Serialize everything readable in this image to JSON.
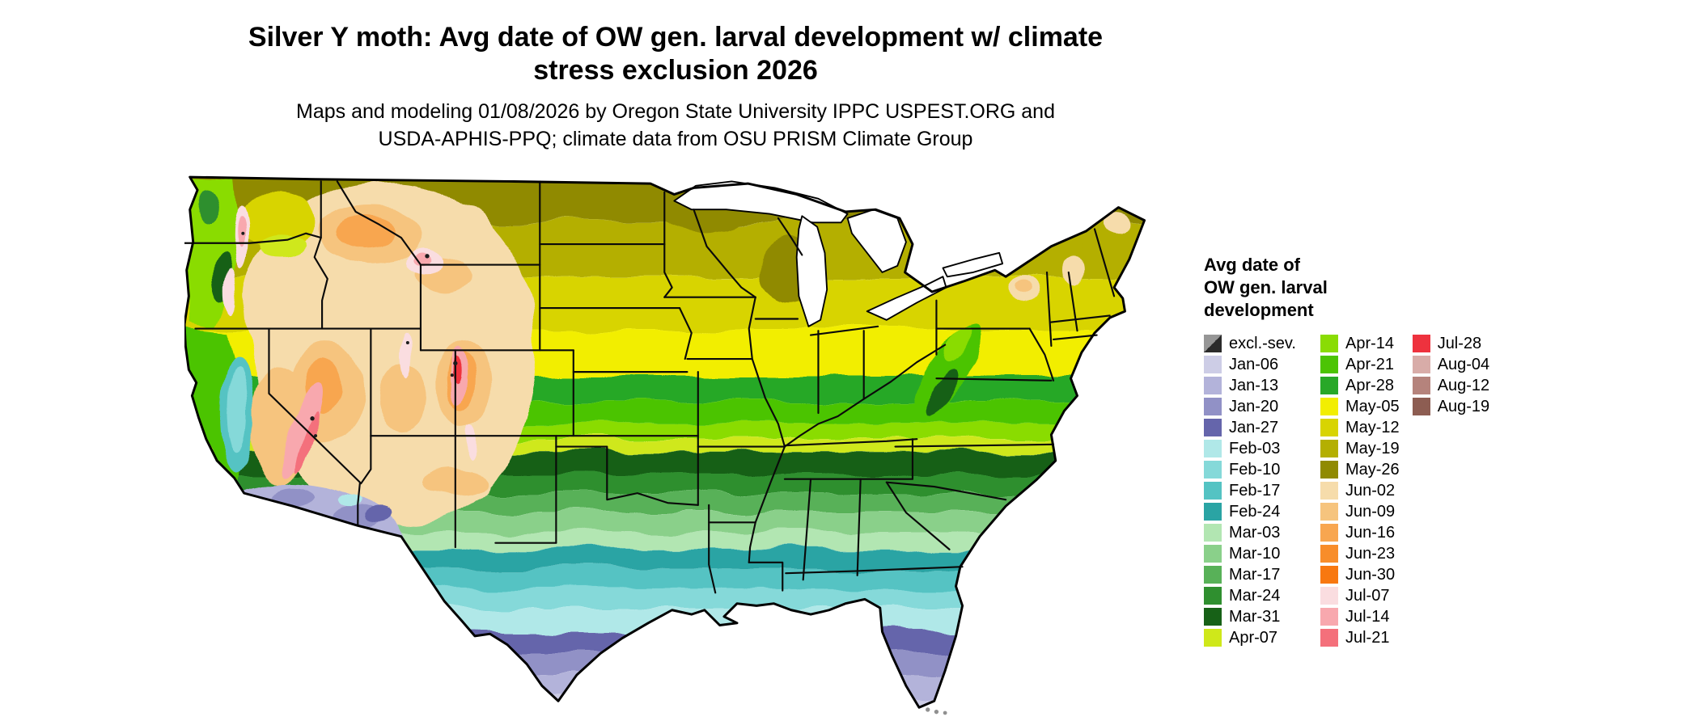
{
  "title": {
    "line1": "Silver Y moth: Avg date of OW gen. larval development w/ climate",
    "line2": "stress exclusion 2026"
  },
  "subtitle": {
    "line1": "Maps and modeling 01/08/2026 by Oregon State University IPPC USPEST.ORG and",
    "line2": "USDA-APHIS-PPQ; climate data from OSU PRISM Climate Group"
  },
  "legend": {
    "title_lines": [
      "Avg date of",
      "OW gen. larval",
      "development"
    ],
    "columns": [
      [
        {
          "label": "excl.-sev.",
          "color": "#969696",
          "color2": "#2b2b2b"
        },
        {
          "label": "Jan-06",
          "color": "#cdcde6"
        },
        {
          "label": "Jan-13",
          "color": "#b3b3da"
        },
        {
          "label": "Jan-20",
          "color": "#9191c6"
        },
        {
          "label": "Jan-27",
          "color": "#6565ab"
        },
        {
          "label": "Feb-03",
          "color": "#b0e8e8"
        },
        {
          "label": "Feb-10",
          "color": "#85d9d9"
        },
        {
          "label": "Feb-17",
          "color": "#54c3c3"
        },
        {
          "label": "Feb-24",
          "color": "#2aa4a4"
        },
        {
          "label": "Mar-03",
          "color": "#b2e6b2"
        },
        {
          "label": "Mar-10",
          "color": "#8ad08a"
        },
        {
          "label": "Mar-17",
          "color": "#58b158"
        },
        {
          "label": "Mar-24",
          "color": "#2f8f2f"
        },
        {
          "label": "Mar-31",
          "color": "#176117"
        },
        {
          "label": "Apr-07",
          "color": "#cfe81a"
        }
      ],
      [
        {
          "label": "Apr-14",
          "color": "#8adc04"
        },
        {
          "label": "Apr-21",
          "color": "#4cc404"
        },
        {
          "label": "Apr-28",
          "color": "#28a828"
        },
        {
          "label": "May-05",
          "color": "#f2ee02"
        },
        {
          "label": "May-12",
          "color": "#d8d402"
        },
        {
          "label": "May-19",
          "color": "#b4af02"
        },
        {
          "label": "May-26",
          "color": "#908a02"
        },
        {
          "label": "Jun-02",
          "color": "#f6dcab"
        },
        {
          "label": "Jun-09",
          "color": "#f6c47e"
        },
        {
          "label": "Jun-16",
          "color": "#f8a650"
        },
        {
          "label": "Jun-23",
          "color": "#f88d2a"
        },
        {
          "label": "Jun-30",
          "color": "#f87810"
        },
        {
          "label": "Jul-07",
          "color": "#fadde0"
        },
        {
          "label": "Jul-14",
          "color": "#f8a8ae"
        },
        {
          "label": "Jul-21",
          "color": "#f4707b"
        }
      ],
      [
        {
          "label": "Jul-28",
          "color": "#ee323e"
        },
        {
          "label": "Aug-04",
          "color": "#d8aca8"
        },
        {
          "label": "Aug-12",
          "color": "#b5837c"
        },
        {
          "label": "Aug-19",
          "color": "#8d5d52"
        }
      ]
    ]
  },
  "chart_data": {
    "type": "heatmap",
    "title": "Silver Y moth: Avg date of OW gen. larval development w/ climate stress exclusion 2026",
    "credit": "Maps and modeling 01/08/2026 by Oregon State University IPPC USPEST.ORG and USDA-APHIS-PPQ; climate data from OSU PRISM Climate Group",
    "geography": "Contiguous United States with state boundaries",
    "legend_title": "Avg date of OW gen. larval development",
    "categories": [
      "excl.-sev.",
      "Jan-06",
      "Jan-13",
      "Jan-20",
      "Jan-27",
      "Feb-03",
      "Feb-10",
      "Feb-17",
      "Feb-24",
      "Mar-03",
      "Mar-10",
      "Mar-17",
      "Mar-24",
      "Mar-31",
      "Apr-07",
      "Apr-14",
      "Apr-21",
      "Apr-28",
      "May-05",
      "May-12",
      "May-19",
      "May-26",
      "Jun-02",
      "Jun-09",
      "Jun-16",
      "Jun-23",
      "Jun-30",
      "Jul-07",
      "Jul-14",
      "Jul-21",
      "Jul-28",
      "Aug-04",
      "Aug-12",
      "Aug-19"
    ],
    "colors": [
      "#969696 / #2b2b2b",
      "#cdcde6",
      "#b3b3da",
      "#9191c6",
      "#6565ab",
      "#b0e8e8",
      "#85d9d9",
      "#54c3c3",
      "#2aa4a4",
      "#b2e6b2",
      "#8ad08a",
      "#58b158",
      "#2f8f2f",
      "#176117",
      "#cfe81a",
      "#8adc04",
      "#4cc404",
      "#28a828",
      "#f2ee02",
      "#d8d402",
      "#b4af02",
      "#908a02",
      "#f6dcab",
      "#f6c47e",
      "#f8a650",
      "#f88d2a",
      "#f87810",
      "#fadde0",
      "#f8a8ae",
      "#f4707b",
      "#ee323e",
      "#d8aca8",
      "#b5837c",
      "#8d5d52"
    ],
    "regions_reading": [
      {
        "region": "South Florida and far south Texas tip",
        "value": "Jan-06 to Jan-20 (pale lavender)"
      },
      {
        "region": "Gulf Coast, central Florida, low deserts of S. California / S. Arizona",
        "value": "Jan-20 to Feb-10 (purple to cyan)"
      },
      {
        "region": "Deep South coastal plain",
        "value": "Feb-10 to Mar-10 (cyan to light green)"
      },
      {
        "region": "Mid-South band (TN, AR, northern MS/AL/GA)",
        "value": "Mar-17 to Mar-31 (dark green)"
      },
      {
        "region": "Lower Midwest, Ozarks, mid-Atlantic, Appalachians",
        "value": "Apr-07 to Apr-28 (green)"
      },
      {
        "region": "Central Plains, Corn Belt, Northeast corridor",
        "value": "May-05 to May-12 (yellow)"
      },
      {
        "region": "Northern Plains, Upper Midwest, northern New England",
        "value": "May-19 to May-26 (olive)"
      },
      {
        "region": "Intermountain West, Great Basin, Rockies plateaus",
        "value": "Jun-02 to Jun-30 (tan to orange)"
      },
      {
        "region": "High mountains (Cascades, Sierra Nevada, Rockies crest)",
        "value": "Jul-07 to Jul-28 (pink to red), small excluded-severe specks"
      },
      {
        "region": "California Central Valley",
        "value": "Feb-10 to Feb-24 (teal)"
      }
    ]
  }
}
